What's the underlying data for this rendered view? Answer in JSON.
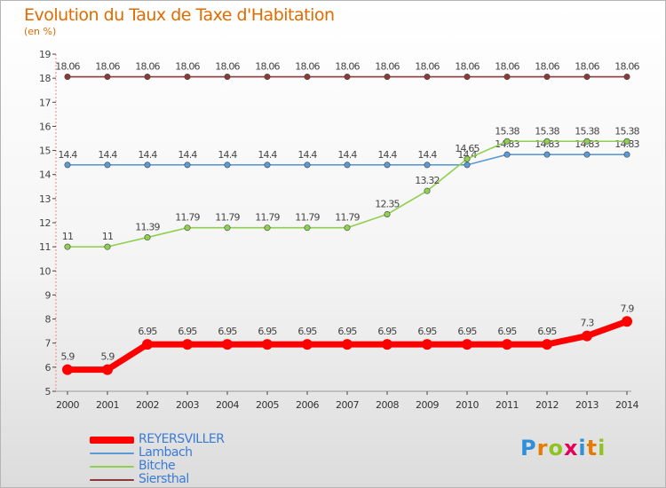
{
  "chart_title": "Evolution du Taux de Taxe d'Habitation",
  "unit_label": "(en %)",
  "logo": {
    "text": "Proxiti",
    "letters": [
      {
        "ch": "P",
        "color": "#2f8fd8"
      },
      {
        "ch": "r",
        "color": "#e57b00"
      },
      {
        "ch": "o",
        "color": "#8fc31f"
      },
      {
        "ch": "x",
        "color": "#e5005b"
      },
      {
        "ch": "i",
        "color": "#2f8fd8"
      },
      {
        "ch": "t",
        "color": "#e57b00"
      },
      {
        "ch": "i",
        "color": "#8fc31f"
      }
    ]
  },
  "chart_data": {
    "type": "line",
    "title": "Evolution du Taux de Taxe d'Habitation",
    "ylabel": "(en %)",
    "xlabel": "",
    "x": [
      2000,
      2001,
      2002,
      2003,
      2004,
      2005,
      2006,
      2007,
      2008,
      2009,
      2010,
      2011,
      2012,
      2013,
      2014
    ],
    "ylim": [
      5,
      19
    ],
    "yticks": [
      5,
      6,
      7,
      8,
      9,
      10,
      11,
      12,
      13,
      14,
      15,
      16,
      17,
      18,
      19
    ],
    "grid": false,
    "legend_position": "bottom-left",
    "series": [
      {
        "name": "REYERSVILLER",
        "color": "#ff0000",
        "emphasis": true,
        "values": [
          5.9,
          5.9,
          6.95,
          6.95,
          6.95,
          6.95,
          6.95,
          6.95,
          6.95,
          6.95,
          6.95,
          6.95,
          6.95,
          7.3,
          7.9
        ],
        "labels": [
          "5.9",
          "5.9",
          "6.95",
          "6.95",
          "6.95",
          "6.95",
          "6.95",
          "6.95",
          "6.95",
          "6.95",
          "6.95",
          "6.95",
          "6.95",
          "7.3",
          "7.9"
        ]
      },
      {
        "name": "Lambach",
        "color": "#5b9bd5",
        "emphasis": false,
        "values": [
          14.4,
          14.4,
          14.4,
          14.4,
          14.4,
          14.4,
          14.4,
          14.4,
          14.4,
          14.4,
          14.4,
          14.83,
          14.83,
          14.83,
          14.83
        ],
        "labels": [
          "14.4",
          "14.4",
          "14.4",
          "14.4",
          "14.4",
          "14.4",
          "14.4",
          "14.4",
          "14.4",
          "14.4",
          "14.4",
          "14.83",
          "14.83",
          "14.83",
          "14.83"
        ]
      },
      {
        "name": "Bitche",
        "color": "#8fd14f",
        "emphasis": false,
        "values": [
          11,
          11,
          11.39,
          11.79,
          11.79,
          11.79,
          11.79,
          11.79,
          12.35,
          13.32,
          14.65,
          15.38,
          15.38,
          15.38,
          15.38
        ],
        "labels": [
          "11",
          "11",
          "11.39",
          "11.79",
          "11.79",
          "11.79",
          "11.79",
          "11.79",
          "12.35",
          "13.32",
          "14.65",
          "15.38",
          "15.38",
          "15.38",
          "15.38"
        ]
      },
      {
        "name": "Siersthal",
        "color": "#8b3a3a",
        "emphasis": false,
        "values": [
          18.06,
          18.06,
          18.06,
          18.06,
          18.06,
          18.06,
          18.06,
          18.06,
          18.06,
          18.06,
          18.06,
          18.06,
          18.06,
          18.06,
          18.06
        ],
        "labels": [
          "18.06",
          "18.06",
          "18.06",
          "18.06",
          "18.06",
          "18.06",
          "18.06",
          "18.06",
          "18.06",
          "18.06",
          "18.06",
          "18.06",
          "18.06",
          "18.06",
          "18.06"
        ]
      }
    ]
  }
}
